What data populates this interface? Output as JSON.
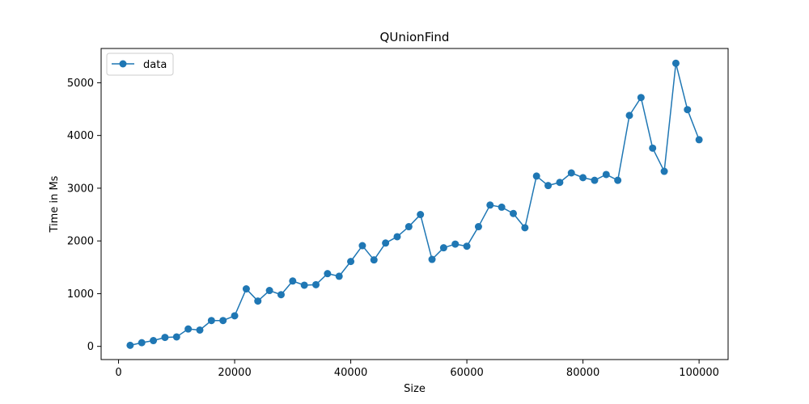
{
  "chart_data": {
    "type": "line",
    "title": "QUnionFind",
    "xlabel": "Size",
    "ylabel": "Time in Ms",
    "xlim": [
      -3000,
      105000
    ],
    "ylim": [
      -250,
      5650
    ],
    "xticks": [
      0,
      20000,
      40000,
      60000,
      80000,
      100000
    ],
    "yticks": [
      0,
      1000,
      2000,
      3000,
      4000,
      5000
    ],
    "grid": false,
    "legend_position": "top-left",
    "colors": {
      "series": "#1f77b4",
      "axes": "#000000"
    },
    "series": [
      {
        "name": "data",
        "x": [
          2000,
          4000,
          6000,
          8000,
          10000,
          12000,
          14000,
          16000,
          18000,
          20000,
          22000,
          24000,
          26000,
          28000,
          30000,
          32000,
          34000,
          36000,
          38000,
          40000,
          42000,
          44000,
          46000,
          48000,
          50000,
          52000,
          54000,
          56000,
          58000,
          60000,
          62000,
          64000,
          66000,
          68000,
          70000,
          72000,
          74000,
          76000,
          78000,
          80000,
          82000,
          84000,
          86000,
          88000,
          90000,
          92000,
          94000,
          96000,
          98000,
          100000
        ],
        "y": [
          20,
          70,
          110,
          170,
          180,
          330,
          310,
          490,
          490,
          580,
          1090,
          860,
          1060,
          980,
          1240,
          1160,
          1170,
          1380,
          1330,
          1610,
          1910,
          1640,
          1960,
          2080,
          2270,
          2500,
          1650,
          1870,
          1940,
          1900,
          2270,
          2680,
          2640,
          2520,
          2250,
          3230,
          3050,
          3110,
          3290,
          3200,
          3150,
          3260,
          3150,
          4380,
          4720,
          3760,
          3320,
          5370,
          4490,
          3920
        ]
      }
    ]
  }
}
